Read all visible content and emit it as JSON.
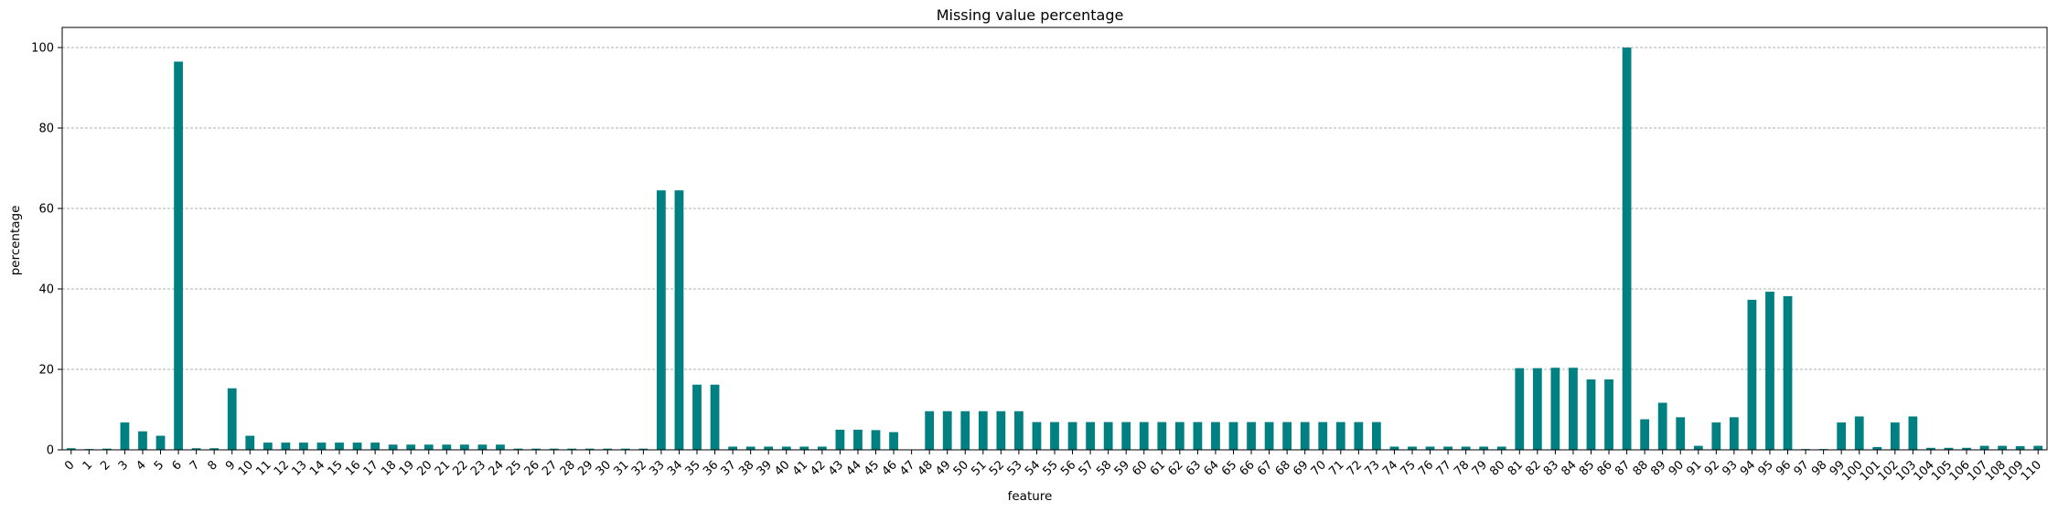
{
  "chart_data": {
    "type": "bar",
    "title": "Missing value percentage",
    "xlabel": "feature",
    "ylabel": "percentage",
    "ylim": [
      0,
      105
    ],
    "yticks": [
      0,
      20,
      40,
      60,
      80,
      100
    ],
    "grid": "y-dashed",
    "bar_color": "#008080",
    "categories": [
      "0",
      "1",
      "2",
      "3",
      "4",
      "5",
      "6",
      "7",
      "8",
      "9",
      "10",
      "11",
      "12",
      "13",
      "14",
      "15",
      "16",
      "17",
      "18",
      "19",
      "20",
      "21",
      "22",
      "23",
      "24",
      "25",
      "26",
      "27",
      "28",
      "29",
      "30",
      "31",
      "32",
      "33",
      "34",
      "35",
      "36",
      "37",
      "38",
      "39",
      "40",
      "41",
      "42",
      "43",
      "44",
      "45",
      "46",
      "47",
      "48",
      "49",
      "50",
      "51",
      "52",
      "53",
      "54",
      "55",
      "56",
      "57",
      "58",
      "59",
      "60",
      "61",
      "62",
      "63",
      "64",
      "65",
      "66",
      "67",
      "68",
      "69",
      "70",
      "71",
      "72",
      "73",
      "74",
      "75",
      "76",
      "77",
      "78",
      "79",
      "80",
      "81",
      "82",
      "83",
      "84",
      "85",
      "86",
      "87",
      "88",
      "89",
      "90",
      "91",
      "92",
      "93",
      "94",
      "95",
      "96",
      "97",
      "98",
      "99",
      "100",
      "101",
      "102",
      "103",
      "104",
      "105",
      "106",
      "107",
      "108",
      "109",
      "110"
    ],
    "values": [
      0.4,
      0.2,
      0.3,
      6.8,
      4.6,
      3.5,
      96.5,
      0.4,
      0.4,
      15.3,
      3.5,
      1.8,
      1.8,
      1.8,
      1.8,
      1.8,
      1.8,
      1.8,
      1.3,
      1.3,
      1.3,
      1.3,
      1.3,
      1.3,
      1.3,
      0.3,
      0.3,
      0.3,
      0.3,
      0.3,
      0.3,
      0.3,
      0.3,
      64.5,
      64.5,
      16.2,
      16.2,
      0.8,
      0.8,
      0.8,
      0.8,
      0.8,
      0.8,
      5.0,
      5.0,
      4.9,
      4.4,
      0.1,
      9.6,
      9.6,
      9.6,
      9.6,
      9.6,
      9.6,
      6.9,
      6.9,
      6.9,
      6.9,
      6.9,
      6.9,
      6.9,
      6.9,
      6.9,
      6.9,
      6.9,
      6.9,
      6.9,
      6.9,
      6.9,
      6.9,
      6.9,
      6.9,
      6.9,
      6.9,
      0.8,
      0.8,
      0.8,
      0.8,
      0.8,
      0.8,
      0.8,
      20.3,
      20.3,
      20.4,
      20.4,
      17.5,
      17.5,
      100.0,
      7.6,
      11.7,
      8.1,
      1.0,
      6.8,
      8.1,
      37.3,
      39.3,
      38.2,
      0.2,
      0.2,
      6.8,
      8.3,
      0.7,
      6.8,
      8.3,
      0.5,
      0.5,
      0.5,
      1.0,
      1.0,
      0.9,
      1.0
    ]
  }
}
